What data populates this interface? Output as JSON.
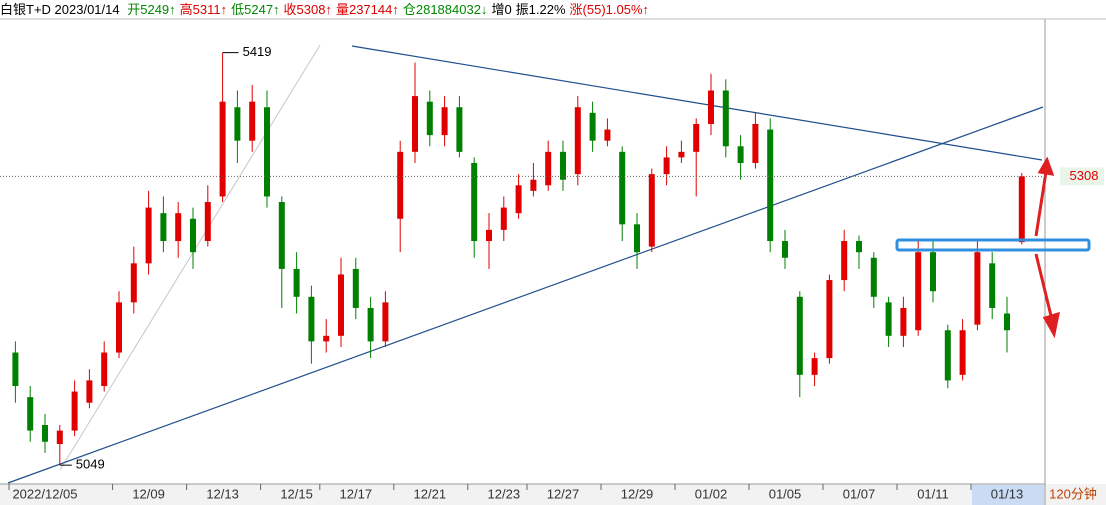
{
  "chart_data": {
    "type": "candlestick",
    "title": "白银T+D 2023/01/14",
    "stats": [
      {
        "text": "开5249↑",
        "color": "#008800"
      },
      {
        "text": "高5311↑",
        "color": "#dd0000"
      },
      {
        "text": "低5247↑",
        "color": "#008800"
      },
      {
        "text": "收5308↑",
        "color": "#dd0000"
      },
      {
        "text": "量237144↑",
        "color": "#dd0000"
      },
      {
        "text": "仓281884032↓",
        "color": "#008800"
      },
      {
        "text": "增0",
        "color": "#000000"
      },
      {
        "text": "振1.22%",
        "color": "#000000"
      },
      {
        "text": "涨(55)1.05%↑",
        "color": "#dd0000"
      }
    ],
    "period": "120分钟",
    "categories": [
      null,
      null,
      "2022/12/05",
      null,
      null,
      null,
      null,
      null,
      null,
      "12/09",
      null,
      null,
      null,
      null,
      "12/13",
      null,
      null,
      null,
      null,
      "12/15",
      null,
      null,
      null,
      "12/17",
      null,
      null,
      null,
      null,
      "12/21",
      null,
      null,
      null,
      null,
      "12/23",
      null,
      null,
      null,
      "12/27",
      null,
      null,
      null,
      null,
      "12/29",
      null,
      null,
      null,
      null,
      "01/02",
      null,
      null,
      null,
      null,
      "01/05",
      null,
      null,
      null,
      null,
      "01/07",
      null,
      null,
      null,
      null,
      "01/11",
      null,
      null,
      null,
      null,
      "01/13",
      null
    ],
    "open": [
      5150,
      5110,
      5085,
      5068,
      5080,
      5105,
      5120,
      5150,
      5195,
      5230,
      5275,
      5250,
      5270,
      5250,
      5290,
      5370,
      5340,
      5370,
      5285,
      5225,
      5200,
      5160,
      5165,
      5225,
      5190,
      5160,
      5270,
      5330,
      5375,
      5345,
      5370,
      5320,
      5250,
      5260,
      5275,
      5295,
      5300,
      5330,
      5310,
      5365,
      5340,
      5330,
      5265,
      5245,
      5310,
      5325,
      5330,
      5355,
      5385,
      5335,
      5320,
      5350,
      5250,
      5200,
      5130,
      5145,
      5215,
      5250,
      5235,
      5195,
      5165,
      5170,
      5240,
      5170,
      5130,
      5175,
      5230,
      5185,
      5249
    ],
    "high": [
      5160,
      5120,
      5095,
      5085,
      5125,
      5135,
      5160,
      5205,
      5245,
      5295,
      5290,
      5285,
      5280,
      5300,
      5419,
      5385,
      5390,
      5385,
      5290,
      5240,
      5210,
      5180,
      5235,
      5235,
      5200,
      5205,
      5340,
      5410,
      5385,
      5380,
      5380,
      5325,
      5275,
      5290,
      5310,
      5320,
      5340,
      5340,
      5380,
      5375,
      5360,
      5335,
      5275,
      5315,
      5335,
      5340,
      5360,
      5400,
      5395,
      5345,
      5365,
      5360,
      5260,
      5205,
      5150,
      5220,
      5260,
      5255,
      5240,
      5200,
      5200,
      5250,
      5250,
      5175,
      5180,
      5250,
      5240,
      5200,
      5311
    ],
    "low": [
      5105,
      5070,
      5060,
      5049,
      5075,
      5100,
      5115,
      5145,
      5185,
      5220,
      5240,
      5235,
      5225,
      5245,
      5285,
      5320,
      5330,
      5280,
      5190,
      5185,
      5140,
      5150,
      5155,
      5180,
      5145,
      5155,
      5240,
      5320,
      5335,
      5335,
      5325,
      5235,
      5225,
      5250,
      5270,
      5290,
      5295,
      5295,
      5300,
      5330,
      5335,
      5250,
      5225,
      5240,
      5300,
      5320,
      5290,
      5345,
      5325,
      5305,
      5315,
      5240,
      5225,
      5110,
      5120,
      5140,
      5205,
      5225,
      5190,
      5155,
      5155,
      5165,
      5195,
      5118,
      5125,
      5170,
      5180,
      5150,
      5247
    ],
    "close": [
      5120,
      5080,
      5070,
      5080,
      5115,
      5125,
      5150,
      5195,
      5230,
      5280,
      5250,
      5275,
      5240,
      5285,
      5375,
      5340,
      5375,
      5290,
      5225,
      5200,
      5160,
      5165,
      5220,
      5190,
      5160,
      5195,
      5330,
      5380,
      5345,
      5370,
      5330,
      5250,
      5260,
      5280,
      5300,
      5305,
      5330,
      5305,
      5370,
      5340,
      5350,
      5265,
      5240,
      5310,
      5325,
      5330,
      5355,
      5385,
      5335,
      5320,
      5355,
      5250,
      5235,
      5130,
      5145,
      5215,
      5250,
      5240,
      5200,
      5165,
      5190,
      5240,
      5205,
      5125,
      5170,
      5240,
      5190,
      5170,
      5308
    ],
    "ylim": [
      5033,
      5459
    ],
    "up_color": "#e00000",
    "down_color": "#008000"
  }
}
